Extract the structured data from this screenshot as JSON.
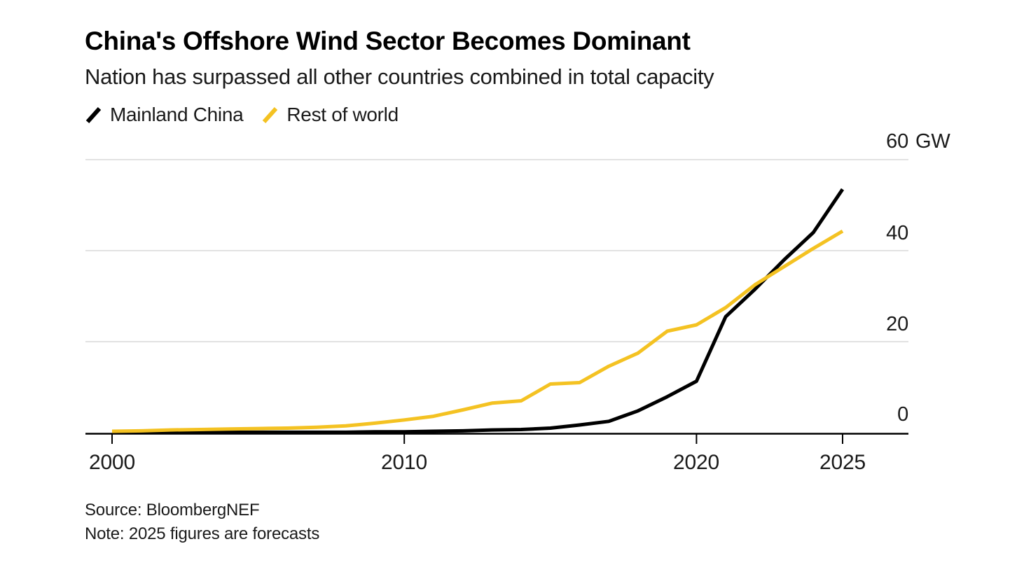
{
  "header": {
    "title": "China's Offshore Wind Sector Becomes Dominant",
    "subtitle": "Nation has surpassed all other countries combined in total capacity"
  },
  "legend": {
    "items": [
      {
        "label": "Mainland China",
        "color": "#000000"
      },
      {
        "label": "Rest of world",
        "color": "#F4C222"
      }
    ]
  },
  "footer": {
    "source": "Source: BloombergNEF",
    "note": "Note: 2025 figures are forecasts"
  },
  "colors": {
    "background": "#FFFFFF",
    "gridline": "#D9D9D9",
    "axis": "#000000",
    "series_china": "#000000",
    "series_rest_of_world": "#F4C222"
  },
  "chart_data": {
    "type": "line",
    "title": "China's Offshore Wind Sector Becomes Dominant",
    "subtitle": "Nation has surpassed all other countries combined in total capacity",
    "xlabel": "",
    "ylabel": "GW",
    "y_axis_unit_suffix": "GW",
    "ylim": [
      0,
      60
    ],
    "xlim": [
      2000,
      2027
    ],
    "grid": "horizontal",
    "legend_position": "top-left",
    "x": [
      2000,
      2001,
      2002,
      2003,
      2004,
      2005,
      2006,
      2007,
      2008,
      2009,
      2010,
      2011,
      2012,
      2013,
      2014,
      2015,
      2016,
      2017,
      2018,
      2019,
      2020,
      2021,
      2022,
      2023,
      2024,
      2025
    ],
    "series": [
      {
        "name": "Mainland China",
        "color": "#000000",
        "values": [
          0.0,
          0.0,
          0.0,
          0.1,
          0.1,
          0.1,
          0.1,
          0.1,
          0.1,
          0.2,
          0.2,
          0.3,
          0.4,
          0.6,
          0.7,
          1.0,
          1.7,
          2.5,
          4.8,
          7.9,
          11.3,
          25.5,
          31.5,
          38.0,
          44.0,
          53.5
        ]
      },
      {
        "name": "Rest of world",
        "color": "#F4C222",
        "values": [
          0.3,
          0.4,
          0.6,
          0.7,
          0.8,
          0.9,
          1.0,
          1.2,
          1.5,
          2.1,
          2.8,
          3.6,
          5.0,
          6.5,
          7.0,
          10.7,
          11.0,
          14.6,
          17.5,
          22.3,
          23.7,
          27.5,
          32.5,
          36.5,
          40.5,
          44.3
        ]
      }
    ],
    "x_ticks": [
      2000,
      2010,
      2020,
      2025
    ],
    "x_tick_labels": [
      "2000",
      "2010",
      "2020",
      "2025"
    ],
    "y_ticks": [
      0,
      20,
      40,
      60
    ],
    "y_tick_labels": [
      "0",
      "20",
      "40",
      "60"
    ],
    "y_gridlines": [
      20,
      40,
      60
    ]
  }
}
